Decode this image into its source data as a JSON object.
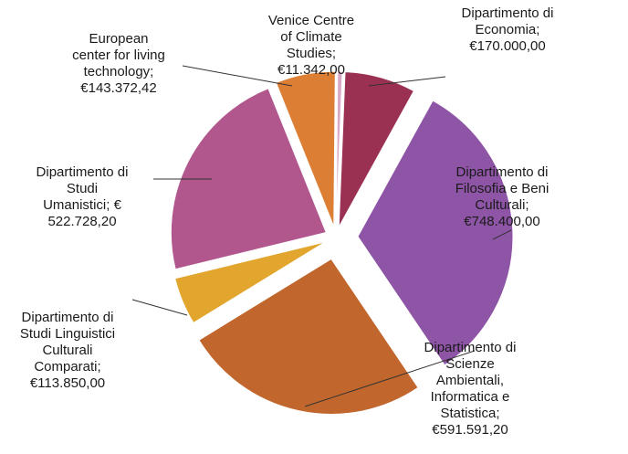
{
  "chart_data": {
    "type": "pie",
    "exploded": true,
    "slices": [
      {
        "name": "Dipartimento di Economia",
        "value": 170000.0,
        "label": "Dipartimento di\nEconomia;\n€170.000,00",
        "color": "#9b3152"
      },
      {
        "name": "Dipartimento di Filosofia e Beni Culturali",
        "value": 748400.0,
        "label": "Dipartimento di\nFilosofia e Beni\nCulturali;\n€748.400,00",
        "color": "#8e55a6"
      },
      {
        "name": "Dipartimento di Scienze Ambientali, Informatica e Statistica",
        "value": 591591.2,
        "label": "Dipartimento di\nScienze\nAmbientali,\nInformatica  e\nStatistica;\n€591.591,20",
        "color": "#c1672d"
      },
      {
        "name": "Dipartimento di Studi Linguistici Culturali Comparati",
        "value": 113850.0,
        "label": "Dipartimento di\nStudi Linguistici\nCulturali\nComparati;\n€113.850,00",
        "color": "#e2a62e"
      },
      {
        "name": "Dipartimento di Studi Umanistici",
        "value": 522728.2,
        "label": "Dipartimento di\nStudi\nUmanistici; €\n522.728,20",
        "color": "#b2578e"
      },
      {
        "name": "European center for living technology",
        "value": 143372.42,
        "label": "European\ncenter for living\ntechnology;\n€143.372,42",
        "color": "#dd7e35"
      },
      {
        "name": "Venice Centre of Climate Studies",
        "value": 11342.0,
        "label": "Venice Centre\nof Climate\nStudies;\n€11.342,00",
        "color": "#d9a9c6"
      }
    ]
  }
}
